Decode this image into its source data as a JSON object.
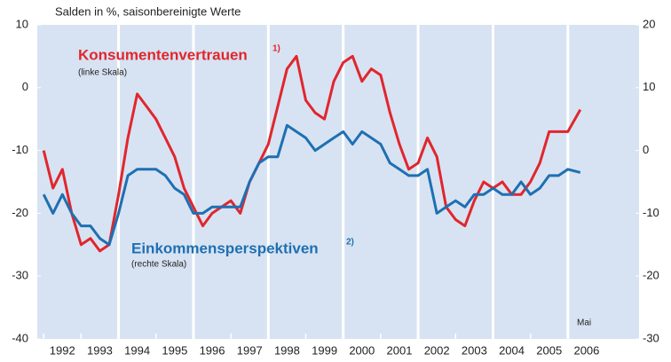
{
  "chart_data": {
    "type": "line",
    "title": "Salden in %, saisonbereinigte Werte",
    "x": [
      1992,
      1992.25,
      1992.5,
      1992.75,
      1993,
      1993.25,
      1993.5,
      1993.75,
      1994,
      1994.25,
      1994.5,
      1994.75,
      1995,
      1995.25,
      1995.5,
      1995.75,
      1996,
      1996.25,
      1996.5,
      1996.75,
      1997,
      1997.25,
      1997.5,
      1997.75,
      1998,
      1998.25,
      1998.5,
      1998.75,
      1999,
      1999.25,
      1999.5,
      1999.75,
      2000,
      2000.25,
      2000.5,
      2000.75,
      2001,
      2001.25,
      2001.5,
      2001.75,
      2002,
      2002.25,
      2002.5,
      2002.75,
      2003,
      2003.25,
      2003.5,
      2003.75,
      2004,
      2004.25,
      2004.5,
      2004.75,
      2005,
      2005.25,
      2005.5,
      2005.75,
      2006,
      2006.33
    ],
    "series": [
      {
        "name": "Konsumentenvertrauen",
        "note": "1)",
        "scale": "(linke Skala)",
        "color": "#e1262d",
        "axis": "y",
        "values": [
          -10,
          -16,
          -13,
          -20,
          -25,
          -24,
          -26,
          -25,
          -17,
          -8,
          -1,
          -3,
          -5,
          -8,
          -11,
          -16,
          -19,
          -22,
          -20,
          -19,
          -18,
          -20,
          -15,
          -12,
          -9,
          -3,
          3,
          5,
          -2,
          -4,
          -5,
          1,
          4,
          5,
          1,
          3,
          2,
          -4,
          -9,
          -13,
          -12,
          -8,
          -11,
          -19,
          -21,
          -22,
          -18,
          -15,
          -16,
          -15,
          -17,
          -17,
          -15,
          -12,
          -7,
          -7,
          -7,
          -3.5
        ]
      },
      {
        "name": "Einkommensperspektiven",
        "note": "2)",
        "scale": "(rechte Skala)",
        "color": "#1f6fb2",
        "axis": "y2",
        "values": [
          -7,
          -10,
          -7,
          -10,
          -12,
          -12,
          -14,
          -15,
          -10,
          -4,
          -3,
          -3,
          -3,
          -4,
          -6,
          -7,
          -10,
          -10,
          -9,
          -9,
          -9,
          -9,
          -5,
          -2,
          -1,
          -1,
          4,
          3,
          2,
          0,
          1,
          2,
          3,
          1,
          3,
          2,
          1,
          -2,
          -3,
          -4,
          -4,
          -3,
          -10,
          -9,
          -8,
          -9,
          -7,
          -7,
          -6,
          -7,
          -7,
          -5,
          -7,
          -6,
          -4,
          -4,
          -3,
          -3.5
        ]
      }
    ],
    "annotation": "Mai",
    "xlim": [
      1991.83,
      2007.9
    ],
    "xticks": [
      {
        "value": 1992.5,
        "label": "1992"
      },
      {
        "value": 1993.5,
        "label": "1993"
      },
      {
        "value": 1994.5,
        "label": "1994"
      },
      {
        "value": 1995.5,
        "label": "1995"
      },
      {
        "value": 1996.5,
        "label": "1996"
      },
      {
        "value": 1997.5,
        "label": "1997"
      },
      {
        "value": 1998.5,
        "label": "1998"
      },
      {
        "value": 1999.5,
        "label": "1999"
      },
      {
        "value": 2000.5,
        "label": "2000"
      },
      {
        "value": 2001.5,
        "label": "2001"
      },
      {
        "value": 2002.5,
        "label": "2002"
      },
      {
        "value": 2003.5,
        "label": "2003"
      },
      {
        "value": 2004.5,
        "label": "2004"
      },
      {
        "value": 2005.5,
        "label": "2005"
      },
      {
        "value": 2006.5,
        "label": "2006"
      }
    ],
    "ylim": [
      -40,
      10
    ],
    "yticks": [
      -40,
      -30,
      -20,
      -10,
      0,
      10
    ],
    "y2lim": [
      -30,
      20
    ],
    "y2ticks": [
      -30,
      -20,
      -10,
      0,
      10,
      20
    ]
  }
}
